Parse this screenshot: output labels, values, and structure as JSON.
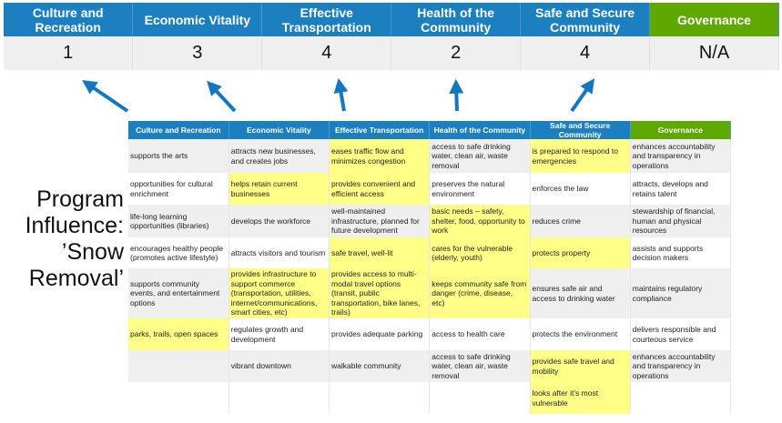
{
  "summary": {
    "headers": [
      "Culture and Recreation",
      "Economic Vitality",
      "Effective Transportation",
      "Health of the Community",
      "Safe and Secure Community",
      "Governance"
    ],
    "values": [
      "1",
      "3",
      "4",
      "2",
      "4",
      "N/A"
    ]
  },
  "side_label": "Program Influence: ’Snow Removal’",
  "colors": {
    "header_blue": "#1c7fc0",
    "governance_green": "#5fa800",
    "highlight_yellow": "#ffff88",
    "arrow_blue": "#1477c0"
  },
  "matrix": {
    "headers": [
      "Culture and Recreation",
      "Economic Vitality",
      "Effective Transportation",
      "Health of the Community",
      "Safe and Secure Community",
      "Governance"
    ],
    "rows": [
      [
        "supports the arts",
        "attracts new businesses, and creates jobs",
        "eases traffic flow and minimizes congestion",
        "access to safe drinking water, clean air, waste removal",
        "is prepared to respond to emergencies",
        "enhances accountability and transparency in operations"
      ],
      [
        "opportunities for cultural enrichment",
        "helps retain current businesses",
        "provides convenient and efficient access",
        "preserves the natural environment",
        "enforces the law",
        "attracts, develops and retains talent"
      ],
      [
        "life-long learning opportunities (libraries)",
        "develops the workforce",
        "well-maintained infrastructure, planned for future development",
        "basic needs – safety, shelter, food, opportunity to work",
        "reduces crime",
        "stewardship of financial, human and physical resources"
      ],
      [
        "encourages healthy people (promotes active lifestyle)",
        "attracts visitors and tourism",
        "safe travel, well-lit",
        "cares for the vulnerable (elderly, youth)",
        "protects property",
        "assists and supports decision makers"
      ],
      [
        "supports community events, and entertainment options",
        "provides infrastructure to support commerce (transportation, utilities, internet/communications, smart cities, etc)",
        "provides access to multi-modal travel options (transit, public transportation, bike lanes, trails)",
        "keeps community safe from danger (crime, disease, etc)",
        "ensures safe air and access to drinking water",
        "maintains regulatory compliance"
      ],
      [
        "parks, trails, open spaces",
        "regulates growth and development",
        "provides adequate parking",
        "access to health care",
        "protects the environment",
        "delivers responsible and courteous service"
      ],
      [
        "",
        "vibrant downtown",
        "walkable community",
        "access to safe drinking water, clean air, waste removal",
        "provides safe travel and mobility",
        "enhances accountability and transparency in operations"
      ],
      [
        "",
        "",
        "",
        "",
        "looks after it’s most vulnerable",
        ""
      ]
    ],
    "highlighted": [
      [
        2,
        4
      ],
      [
        1,
        2
      ],
      [
        3
      ],
      [
        2,
        3,
        4
      ],
      [
        1,
        2,
        3
      ],
      [
        0
      ],
      [
        4
      ],
      [
        4
      ]
    ]
  }
}
